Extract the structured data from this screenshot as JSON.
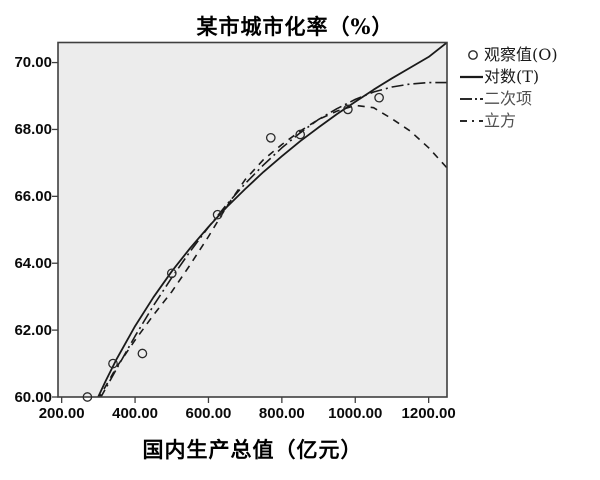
{
  "title": "某市城市化率（%）",
  "legend": {
    "items": [
      {
        "label": "观察值(O)",
        "swatch": "circle-marker"
      },
      {
        "label": "对数(T)",
        "swatch": "solid-line"
      },
      {
        "label": "二次项",
        "swatch": "dash-dot-line"
      },
      {
        "label": "立方",
        "swatch": "short-dash-dot-line"
      }
    ]
  },
  "colors": {
    "plot_background": "#ececec",
    "frame": "#3f3f3f",
    "series_line": "#1a1a1a",
    "text": "#000000",
    "secondary_text": "#4f4f4f"
  },
  "chart_data": {
    "type": "scatter",
    "title": "某市城市化率（%）",
    "xlabel": "国内生产总值（亿元）",
    "ylabel": "",
    "xlim": [
      190,
      1250
    ],
    "ylim": [
      60,
      70.6
    ],
    "grid": false,
    "legend_position": "outside-top-right",
    "x_ticks": {
      "values": [
        200,
        400,
        600,
        800,
        1000,
        1200
      ],
      "labels": [
        "200.00",
        "400.00",
        "600.00",
        "800.00",
        "1000.00",
        "1200.00"
      ]
    },
    "y_ticks": {
      "values": [
        70,
        68,
        66,
        64,
        62,
        60
      ],
      "labels": [
        "70.00",
        "68.00",
        "66.00",
        "64.00",
        "62.00",
        "60.00"
      ]
    },
    "observed": {
      "name": "观察值(O)",
      "points": [
        [
          270,
          60.0
        ],
        [
          340,
          61.0
        ],
        [
          420,
          61.3
        ],
        [
          500,
          63.7
        ],
        [
          625,
          65.45
        ],
        [
          770,
          67.75
        ],
        [
          850,
          67.85
        ],
        [
          980,
          68.6
        ],
        [
          1065,
          68.95
        ]
      ]
    },
    "series": [
      {
        "name": "对数(T)",
        "line_style": "solid",
        "points": [
          [
            293,
            59.85
          ],
          [
            320,
            60.48
          ],
          [
            350,
            61.14
          ],
          [
            400,
            62.12
          ],
          [
            450,
            62.98
          ],
          [
            500,
            63.76
          ],
          [
            550,
            64.45
          ],
          [
            600,
            65.09
          ],
          [
            650,
            65.68
          ],
          [
            700,
            66.22
          ],
          [
            750,
            66.73
          ],
          [
            800,
            67.2
          ],
          [
            850,
            67.65
          ],
          [
            900,
            68.06
          ],
          [
            950,
            68.46
          ],
          [
            1000,
            68.83
          ],
          [
            1050,
            69.19
          ],
          [
            1100,
            69.53
          ],
          [
            1150,
            69.85
          ],
          [
            1200,
            70.17
          ],
          [
            1250,
            70.6
          ]
        ]
      },
      {
        "name": "二次项",
        "line_style": "dash-dot",
        "points": [
          [
            302,
            59.9
          ],
          [
            350,
            60.85
          ],
          [
            400,
            61.82
          ],
          [
            450,
            62.73
          ],
          [
            500,
            63.57
          ],
          [
            550,
            64.35
          ],
          [
            600,
            65.08
          ],
          [
            650,
            65.76
          ],
          [
            700,
            66.38
          ],
          [
            750,
            66.94
          ],
          [
            800,
            67.45
          ],
          [
            850,
            67.9
          ],
          [
            900,
            68.3
          ],
          [
            950,
            68.62
          ],
          [
            1000,
            68.9
          ],
          [
            1050,
            69.12
          ],
          [
            1100,
            69.27
          ],
          [
            1150,
            69.36
          ],
          [
            1200,
            69.4
          ],
          [
            1250,
            69.4
          ]
        ]
      },
      {
        "name": "立方",
        "line_style": "dashed",
        "points": [
          [
            298,
            59.9
          ],
          [
            350,
            60.9
          ],
          [
            400,
            61.7
          ],
          [
            450,
            62.45
          ],
          [
            500,
            63.15
          ],
          [
            550,
            63.95
          ],
          [
            600,
            64.8
          ],
          [
            650,
            65.7
          ],
          [
            700,
            66.5
          ],
          [
            750,
            67.1
          ],
          [
            800,
            67.55
          ],
          [
            850,
            67.95
          ],
          [
            900,
            68.3
          ],
          [
            950,
            68.55
          ],
          [
            1000,
            68.72
          ],
          [
            1050,
            68.65
          ],
          [
            1100,
            68.32
          ],
          [
            1150,
            67.95
          ],
          [
            1200,
            67.45
          ],
          [
            1250,
            66.85
          ]
        ]
      }
    ]
  }
}
